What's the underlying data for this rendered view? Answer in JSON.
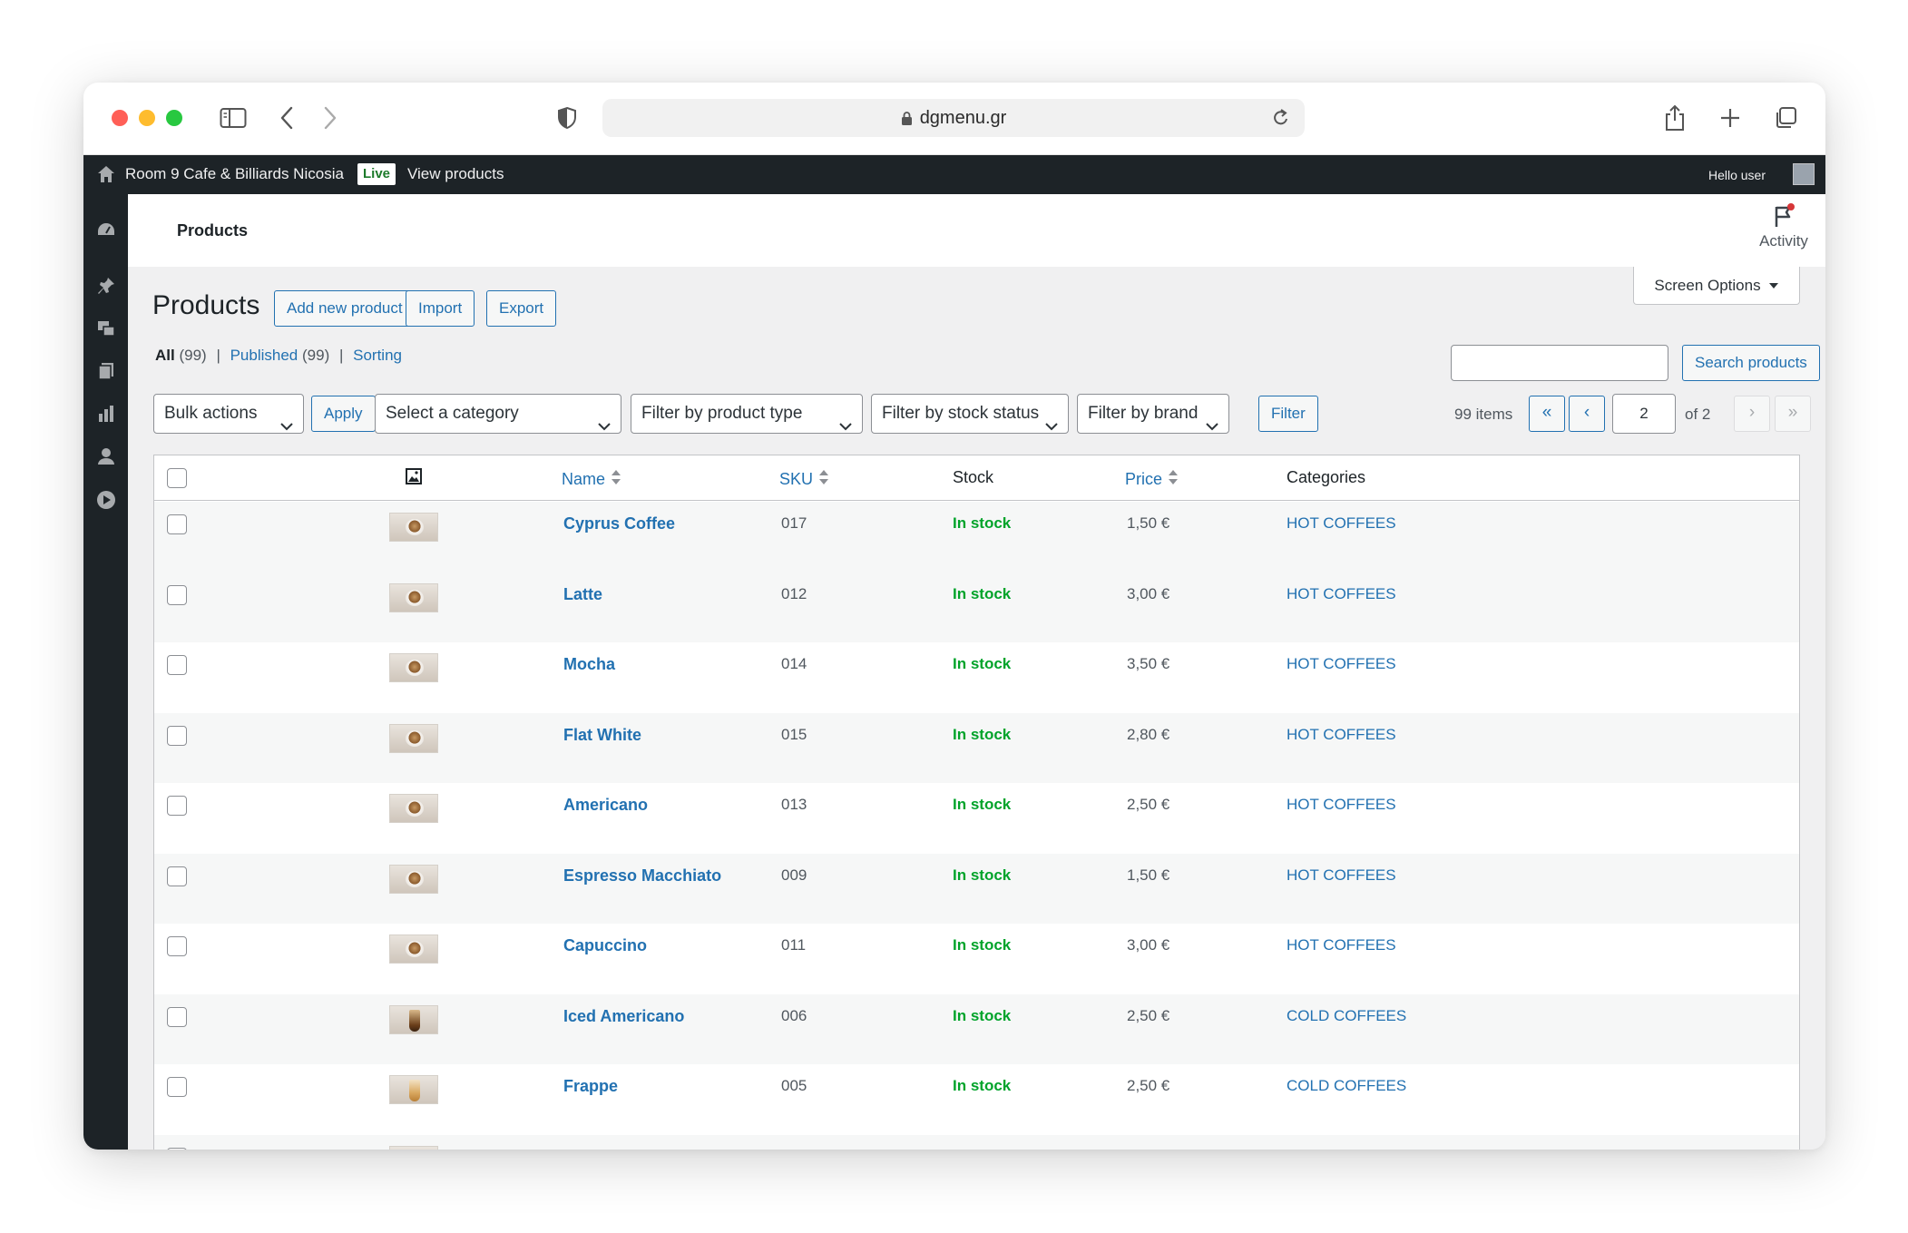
{
  "browser": {
    "url": "dgmenu.gr"
  },
  "adminbar": {
    "site_name": "Room 9 Cafe & Billiards Nicosia",
    "live_badge": "Live",
    "view_products": "View products",
    "greeting": "Hello user"
  },
  "header": {
    "title": "Products",
    "activity_label": "Activity",
    "screen_options": "Screen Options"
  },
  "page": {
    "heading": "Products",
    "add_new": "Add new product",
    "import": "Import",
    "export": "Export"
  },
  "views": {
    "all_label": "All",
    "all_count": "(99)",
    "separator": "|",
    "published_label": "Published",
    "published_count": "(99)",
    "sorting_label": "Sorting"
  },
  "search": {
    "placeholder": "",
    "button": "Search products"
  },
  "filters": {
    "bulk_actions": "Bulk actions",
    "apply": "Apply",
    "category": "Select a category",
    "product_type": "Filter by product type",
    "stock_status": "Filter by stock status",
    "brand": "Filter by brand",
    "filter_button": "Filter"
  },
  "pagination": {
    "items": "99 items",
    "first": "«",
    "prev": "‹",
    "current_page": "2",
    "of": "of 2",
    "next": "›",
    "last": "»"
  },
  "table": {
    "columns": {
      "name": "Name",
      "sku": "SKU",
      "stock": "Stock",
      "price": "Price",
      "categories": "Categories"
    },
    "rows": [
      {
        "name": "Cyprus Coffee",
        "sku": "017",
        "stock": "In stock",
        "price": "1,50 €",
        "category": "HOT COFFEES"
      },
      {
        "name": "Latte",
        "sku": "012",
        "stock": "In stock",
        "price": "3,00 €",
        "category": "HOT COFFEES"
      },
      {
        "name": "Mocha",
        "sku": "014",
        "stock": "In stock",
        "price": "3,50 €",
        "category": "HOT COFFEES"
      },
      {
        "name": "Flat White",
        "sku": "015",
        "stock": "In stock",
        "price": "2,80 €",
        "category": "HOT COFFEES"
      },
      {
        "name": "Americano",
        "sku": "013",
        "stock": "In stock",
        "price": "2,50 €",
        "category": "HOT COFFEES"
      },
      {
        "name": "Espresso Macchiato",
        "sku": "009",
        "stock": "In stock",
        "price": "1,50 €",
        "category": "HOT COFFEES"
      },
      {
        "name": "Capuccino",
        "sku": "011",
        "stock": "In stock",
        "price": "3,00 €",
        "category": "HOT COFFEES"
      },
      {
        "name": "Iced Americano",
        "sku": "006",
        "stock": "In stock",
        "price": "2,50 €",
        "category": "COLD COFFEES"
      },
      {
        "name": "Frappe",
        "sku": "005",
        "stock": "In stock",
        "price": "2,50 €",
        "category": "COLD COFFEES"
      }
    ]
  },
  "colors": {
    "admin_dark": "#1d2327",
    "link_blue": "#2271b1",
    "in_stock_green": "#00a32a",
    "background": "#f0f0f1"
  },
  "icons": {
    "sidebar": [
      "dashboard-icon",
      "pin-icon",
      "media-icon",
      "pages-icon",
      "analytics-icon",
      "users-icon",
      "play-icon"
    ]
  }
}
